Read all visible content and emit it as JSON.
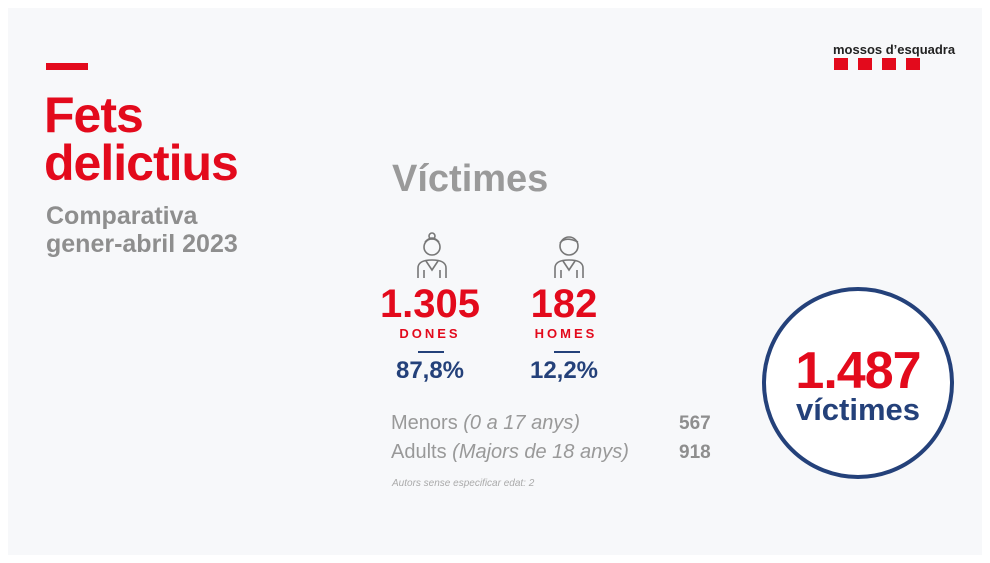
{
  "logo": {
    "text": "mossos d’esquadra"
  },
  "header": {
    "title_line1": "Fets",
    "title_line2": "delictius",
    "subtitle_line1": "Comparativa",
    "subtitle_line2": "gener-abril 2023"
  },
  "section": {
    "title": "Víctimes"
  },
  "women": {
    "count": "1.305",
    "label": "DONES",
    "share": "87,8%"
  },
  "men": {
    "count": "182",
    "label": "HOMES",
    "share": "12,2%"
  },
  "age_rows": [
    {
      "label": "Menors",
      "range": "(0 a 17 anys)",
      "value": "567"
    },
    {
      "label": "Adults",
      "range": "(Majors de 18 anys)",
      "value": "918"
    }
  ],
  "note": "Autors sense especificar edat: 2",
  "total": {
    "count": "1.487",
    "label": "víctimes"
  }
}
